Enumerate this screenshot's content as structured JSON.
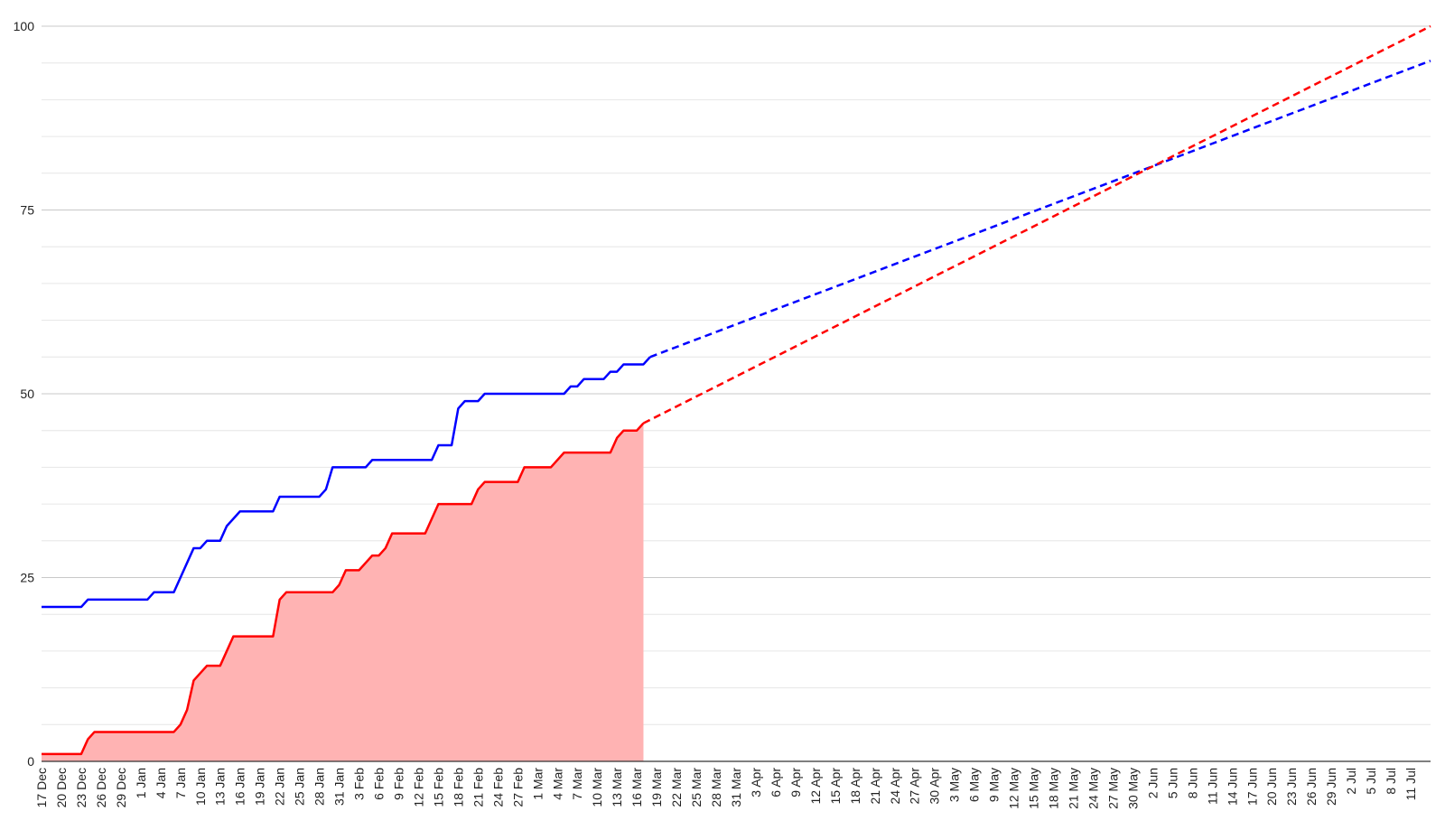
{
  "chart_data": {
    "type": "line",
    "title": "",
    "xlabel": "",
    "ylabel": "",
    "ylim": [
      0,
      100
    ],
    "yticks": [
      0,
      25,
      50,
      75,
      100
    ],
    "ytick_labels": [
      "0",
      "25",
      "50",
      "75",
      "100"
    ],
    "xlim": [
      "2023-12-17",
      "2024-07-14"
    ],
    "grid": true,
    "legend": "none",
    "x_tick_labels": [
      "17 Dec",
      "20 Dec",
      "23 Dec",
      "26 Dec",
      "29 Dec",
      "1 Jan",
      "4 Jan",
      "7 Jan",
      "10 Jan",
      "13 Jan",
      "16 Jan",
      "19 Jan",
      "22 Jan",
      "25 Jan",
      "28 Jan",
      "31 Jan",
      "3 Feb",
      "6 Feb",
      "9 Feb",
      "12 Feb",
      "15 Feb",
      "18 Feb",
      "21 Feb",
      "24 Feb",
      "27 Feb",
      "1 Mar",
      "4 Mar",
      "7 Mar",
      "10 Mar",
      "13 Mar",
      "16 Mar",
      "19 Mar",
      "22 Mar",
      "25 Mar",
      "28 Mar",
      "31 Mar",
      "3 Apr",
      "6 Apr",
      "9 Apr",
      "12 Apr",
      "15 Apr",
      "18 Apr",
      "21 Apr",
      "24 Apr",
      "27 Apr",
      "30 Apr",
      "3 May",
      "6 May",
      "9 May",
      "12 May",
      "15 May",
      "18 May",
      "21 May",
      "24 May",
      "27 May",
      "30 May",
      "2 Jun",
      "5 Jun",
      "8 Jun",
      "11 Jun",
      "14 Jun",
      "17 Jun",
      "20 Jun",
      "23 Jun",
      "26 Jun",
      "29 Jun",
      "2 Jul",
      "5 Jul",
      "8 Jul",
      "11 Jul"
    ],
    "series": [
      {
        "color": "#0000ff",
        "style": "solid",
        "points": [
          [
            "2023-12-17",
            21
          ],
          [
            "2023-12-23",
            21
          ],
          [
            "2023-12-24",
            22
          ],
          [
            "2024-01-02",
            22
          ],
          [
            "2024-01-03",
            23
          ],
          [
            "2024-01-06",
            23
          ],
          [
            "2024-01-09",
            29
          ],
          [
            "2024-01-10",
            29
          ],
          [
            "2024-01-11",
            30
          ],
          [
            "2024-01-13",
            30
          ],
          [
            "2024-01-14",
            32
          ],
          [
            "2024-01-16",
            34
          ],
          [
            "2024-01-21",
            34
          ],
          [
            "2024-01-22",
            36
          ],
          [
            "2024-01-28",
            36
          ],
          [
            "2024-01-29",
            37
          ],
          [
            "2024-01-30",
            40
          ],
          [
            "2024-02-04",
            40
          ],
          [
            "2024-02-05",
            41
          ],
          [
            "2024-02-14",
            41
          ],
          [
            "2024-02-15",
            43
          ],
          [
            "2024-02-17",
            43
          ],
          [
            "2024-02-18",
            48
          ],
          [
            "2024-02-19",
            49
          ],
          [
            "2024-02-21",
            49
          ],
          [
            "2024-02-22",
            50
          ],
          [
            "2024-03-05",
            50
          ],
          [
            "2024-03-06",
            51
          ],
          [
            "2024-03-07",
            51
          ],
          [
            "2024-03-08",
            52
          ],
          [
            "2024-03-11",
            52
          ],
          [
            "2024-03-12",
            53
          ],
          [
            "2024-03-13",
            53
          ],
          [
            "2024-03-14",
            54
          ],
          [
            "2024-03-17",
            54
          ],
          [
            "2024-03-18",
            55
          ]
        ]
      },
      {
        "color": "#ff0000",
        "fill": "#ffb3b3",
        "style": "solid",
        "points": [
          [
            "2023-12-17",
            1
          ],
          [
            "2023-12-23",
            1
          ],
          [
            "2023-12-24",
            3
          ],
          [
            "2023-12-25",
            4
          ],
          [
            "2024-01-06",
            4
          ],
          [
            "2024-01-07",
            5
          ],
          [
            "2024-01-08",
            7
          ],
          [
            "2024-01-09",
            11
          ],
          [
            "2024-01-11",
            13
          ],
          [
            "2024-01-13",
            13
          ],
          [
            "2024-01-15",
            17
          ],
          [
            "2024-01-21",
            17
          ],
          [
            "2024-01-22",
            22
          ],
          [
            "2024-01-23",
            23
          ],
          [
            "2024-01-30",
            23
          ],
          [
            "2024-01-31",
            24
          ],
          [
            "2024-02-01",
            26
          ],
          [
            "2024-02-03",
            26
          ],
          [
            "2024-02-05",
            28
          ],
          [
            "2024-02-06",
            28
          ],
          [
            "2024-02-07",
            29
          ],
          [
            "2024-02-08",
            31
          ],
          [
            "2024-02-13",
            31
          ],
          [
            "2024-02-15",
            35
          ],
          [
            "2024-02-20",
            35
          ],
          [
            "2024-02-21",
            37
          ],
          [
            "2024-02-22",
            38
          ],
          [
            "2024-02-27",
            38
          ],
          [
            "2024-02-28",
            40
          ],
          [
            "2024-03-03",
            40
          ],
          [
            "2024-03-05",
            42
          ],
          [
            "2024-03-12",
            42
          ],
          [
            "2024-03-13",
            44
          ],
          [
            "2024-03-14",
            45
          ],
          [
            "2024-03-16",
            45
          ],
          [
            "2024-03-17",
            46
          ]
        ]
      },
      {
        "color": "#0000ff",
        "style": "dashed",
        "points": [
          [
            "2024-03-18",
            55
          ],
          [
            "2024-07-14",
            95.3
          ]
        ]
      },
      {
        "color": "#ff0000",
        "style": "dashed",
        "points": [
          [
            "2024-03-17",
            46
          ],
          [
            "2024-07-14",
            100
          ]
        ]
      }
    ]
  }
}
